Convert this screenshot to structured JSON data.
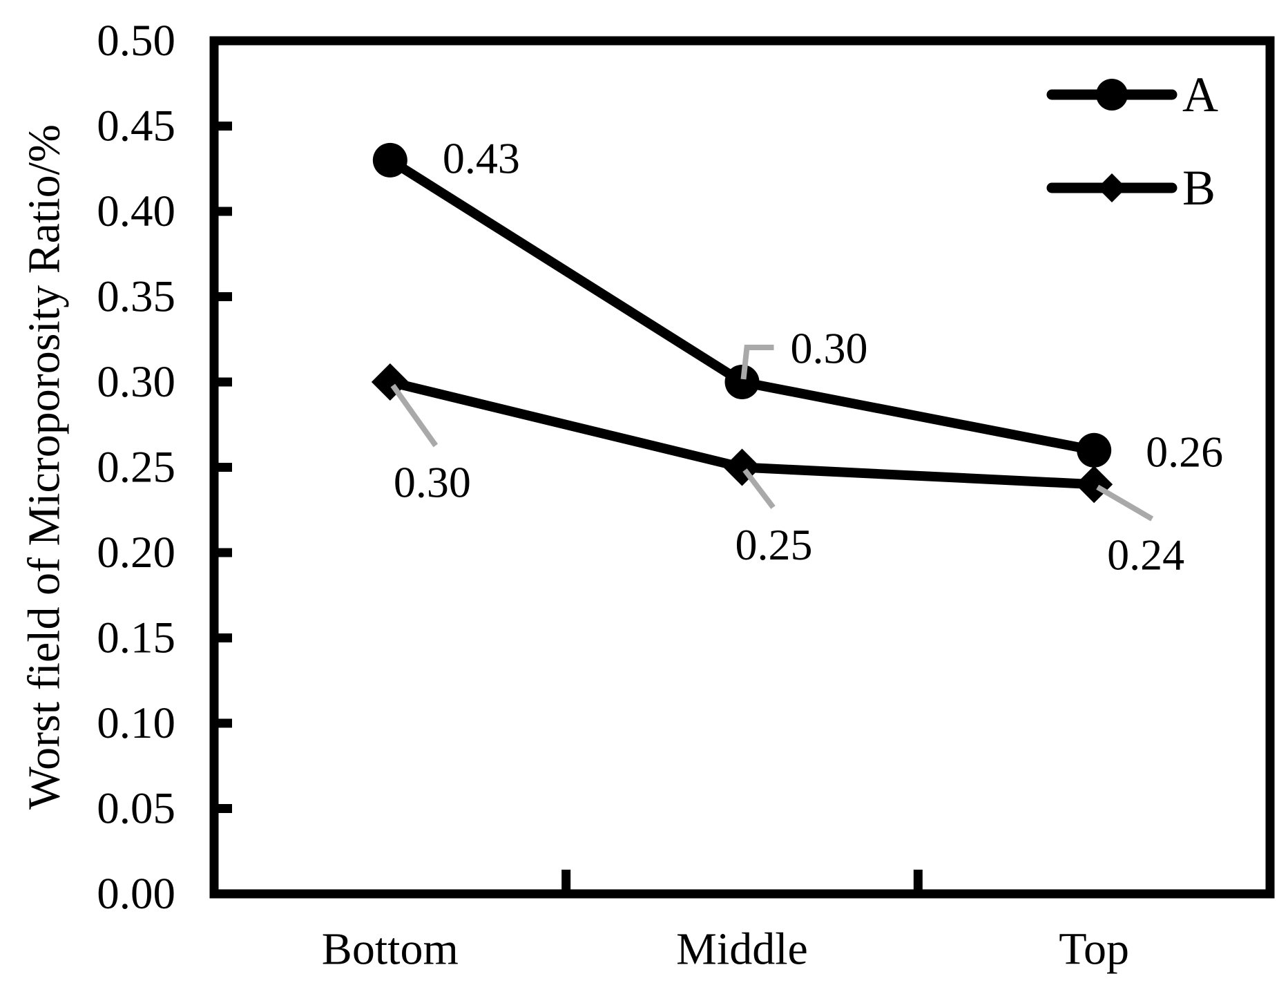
{
  "chart_data": {
    "type": "line",
    "title": "",
    "categories": [
      "Bottom",
      "Middle",
      "Top"
    ],
    "series": [
      {
        "name": "A",
        "marker": "circle",
        "values": [
          0.43,
          0.3,
          0.26
        ],
        "data_labels": [
          {
            "text": "0.43",
            "dx": 132,
            "dy": -3,
            "leader": null
          },
          {
            "text": "0.30",
            "dx": 126,
            "dy": -49,
            "leader": [
              [
                2,
                -4
              ],
              [
                7,
                -50
              ],
              [
                46,
                -50
              ]
            ]
          },
          {
            "text": "0.26",
            "dx": 131,
            "dy": 2,
            "leader": null
          }
        ]
      },
      {
        "name": "B",
        "marker": "diamond",
        "values": [
          0.3,
          0.25,
          0.24
        ],
        "data_labels": [
          {
            "text": "0.30",
            "dx": 61,
            "dy": 145,
            "leader": [
              [
                4,
                5
              ],
              [
                66,
                92
              ]
            ]
          },
          {
            "text": "0.25",
            "dx": 46,
            "dy": 112,
            "leader": [
              [
                4,
                4
              ],
              [
                45,
                58
              ]
            ]
          },
          {
            "text": "0.24",
            "dx": 75,
            "dy": 102,
            "leader": [
              [
                5,
                4
              ],
              [
                84,
                50
              ]
            ]
          }
        ]
      }
    ],
    "xlabel": "",
    "ylabel": "Worst field of Microporosity Ratio/%",
    "ylim": [
      0.0,
      0.5
    ],
    "ytick_step": 0.05,
    "ytick_labels": [
      "0.00",
      "0.05",
      "0.10",
      "0.15",
      "0.20",
      "0.25",
      "0.30",
      "0.35",
      "0.40",
      "0.45",
      "0.50"
    ],
    "legend": {
      "position": "top-right",
      "entries": [
        "A",
        "B"
      ]
    },
    "grid": false,
    "colors": {
      "series": "#000000",
      "text": "#000000",
      "leader_line": "#a9a9a9",
      "background": "#ffffff"
    }
  }
}
